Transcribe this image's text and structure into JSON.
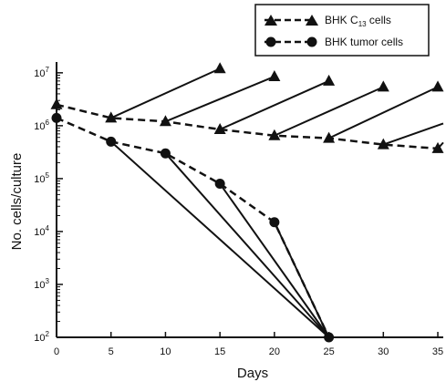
{
  "chart_data": {
    "type": "line",
    "xlabel": "Days",
    "ylabel": "No. cells/culture",
    "x_ticks": [
      0,
      5,
      10,
      15,
      20,
      25,
      30,
      35
    ],
    "xlim": [
      0,
      35.5
    ],
    "y_scale": "log",
    "y_ticks": [
      {
        "value": 100,
        "base": "10",
        "exp": "2"
      },
      {
        "value": 1000,
        "base": "10",
        "exp": "3"
      },
      {
        "value": 10000,
        "base": "10",
        "exp": "4"
      },
      {
        "value": 100000,
        "base": "10",
        "exp": "5"
      },
      {
        "value": 1000000,
        "base": "10",
        "exp": "6"
      },
      {
        "value": 10000000,
        "base": "10",
        "exp": "7"
      }
    ],
    "ylim": [
      100,
      16000000
    ],
    "legend_position": "top-right",
    "series": [
      {
        "name": "BHK C13 cells",
        "name_main": "BHK C",
        "name_sub": "13",
        "name_tail": " cells",
        "marker": "triangle",
        "style": "dashed",
        "x": [
          0,
          5,
          10,
          15,
          20,
          25,
          30,
          35
        ],
        "y": [
          2500000,
          1400000,
          1200000,
          850000,
          650000,
          580000,
          440000,
          370000
        ]
      },
      {
        "name": "BHK tumor cells",
        "marker": "circle",
        "style": "dashed",
        "x": [
          0,
          5,
          10,
          15,
          20,
          25
        ],
        "y": [
          1400000,
          500000,
          300000,
          80000,
          15000,
          100
        ]
      }
    ],
    "growth_lines": [
      {
        "x": [
          5,
          15
        ],
        "y": [
          1400000,
          12000000
        ],
        "end_marker": "triangle"
      },
      {
        "x": [
          10,
          20
        ],
        "y": [
          1200000,
          8500000
        ],
        "end_marker": "triangle"
      },
      {
        "x": [
          15,
          25
        ],
        "y": [
          850000,
          7000000
        ],
        "end_marker": "triangle"
      },
      {
        "x": [
          20,
          30
        ],
        "y": [
          650000,
          5400000
        ],
        "end_marker": "triangle"
      },
      {
        "x": [
          25,
          35
        ],
        "y": [
          580000,
          5400000
        ],
        "end_marker": "triangle"
      },
      {
        "x": [
          30,
          35.5
        ],
        "y": [
          440000,
          1100000
        ],
        "end_marker": "none"
      },
      {
        "x": [
          35,
          35.5
        ],
        "y": [
          370000,
          480000
        ],
        "end_marker": "none"
      }
    ],
    "decline_lines": [
      {
        "x": [
          5,
          25
        ],
        "y": [
          500000,
          100
        ]
      },
      {
        "x": [
          10,
          25
        ],
        "y": [
          300000,
          100
        ]
      },
      {
        "x": [
          15,
          25
        ],
        "y": [
          80000,
          100
        ]
      },
      {
        "x": [
          20,
          25
        ],
        "y": [
          15000,
          100
        ]
      }
    ]
  }
}
